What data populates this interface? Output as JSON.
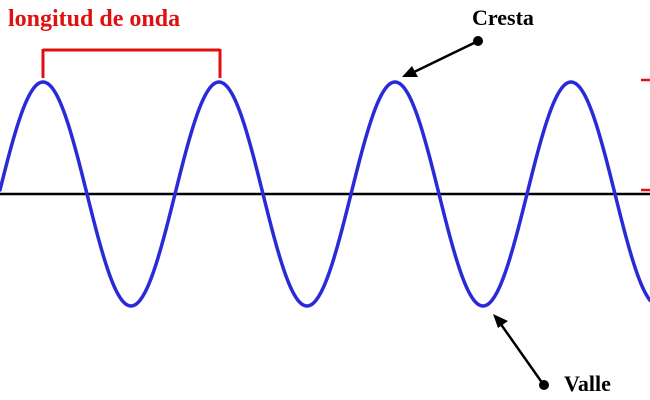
{
  "diagram": {
    "wavelength_label": "longitud de onda",
    "crest_label": "Cresta",
    "trough_label": "Valle"
  },
  "colors": {
    "wave": "#2a2ad8",
    "axis": "#000000",
    "wavelength_marker": "#e01010",
    "label_text": "#000000",
    "wavelength_text": "#e01010"
  }
}
